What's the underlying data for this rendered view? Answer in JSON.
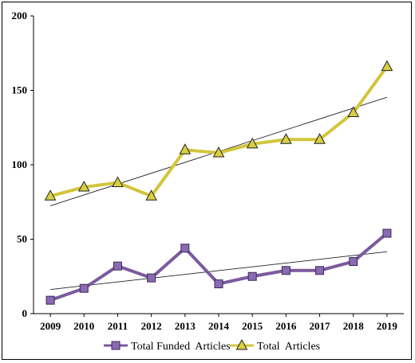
{
  "chart_data": {
    "type": "line",
    "categories": [
      "2009",
      "2010",
      "2011",
      "2012",
      "2013",
      "2014",
      "2015",
      "2016",
      "2017",
      "2018",
      "2019"
    ],
    "ylim": [
      0,
      200
    ],
    "yticks": [
      0,
      50,
      100,
      150,
      200
    ],
    "grid": false,
    "legend_position": "bottom",
    "series": [
      {
        "name": "Total Funded  Articles",
        "values": [
          9,
          17,
          32,
          24,
          44,
          20,
          25,
          29,
          29,
          35,
          54
        ],
        "color": "#7b5a9e",
        "marker": "square",
        "marker_fill": "#8a6ab2",
        "trendline": true
      },
      {
        "name": "Total  Articles",
        "values": [
          79,
          85,
          88,
          79,
          110,
          108,
          114,
          117,
          117,
          135,
          166
        ],
        "color": "#d2c53a",
        "marker": "triangle",
        "marker_fill": "#d8cf42",
        "trendline": true
      }
    ],
    "trendline_color": "#222222"
  }
}
